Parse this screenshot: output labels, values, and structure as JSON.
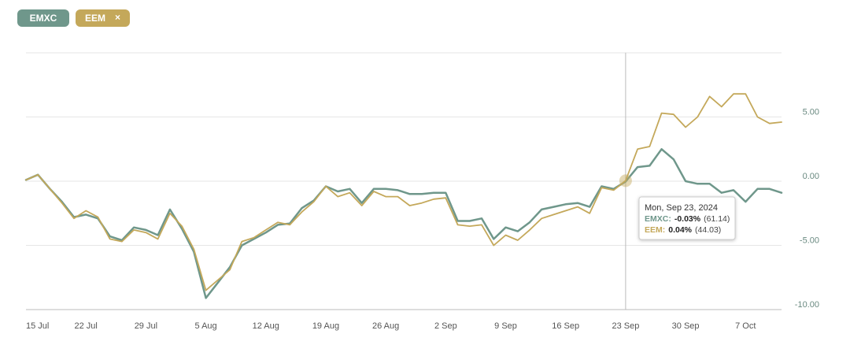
{
  "chart_data": {
    "type": "line",
    "legend": {
      "close_icon": "×"
    },
    "categories": [
      "15 Jul",
      null,
      null,
      null,
      null,
      "22 Jul",
      null,
      null,
      null,
      null,
      "29 Jul",
      null,
      null,
      null,
      null,
      "5 Aug",
      null,
      null,
      null,
      null,
      "12 Aug",
      null,
      null,
      null,
      null,
      "19 Aug",
      null,
      null,
      null,
      null,
      "26 Aug",
      null,
      null,
      null,
      null,
      "2 Sep",
      null,
      null,
      null,
      null,
      "9 Sep",
      null,
      null,
      null,
      null,
      "16 Sep",
      null,
      null,
      null,
      null,
      "23 Sep",
      null,
      null,
      null,
      null,
      "30 Sep",
      null,
      null,
      null,
      null,
      "7 Oct",
      null,
      null,
      null
    ],
    "series": [
      {
        "name": "EMXC",
        "color": "#6f978b",
        "values": [
          0.1,
          0.5,
          -0.6,
          -1.6,
          -2.8,
          -2.6,
          -2.9,
          -4.3,
          -4.6,
          -3.6,
          -3.8,
          -4.2,
          -2.2,
          -3.7,
          -5.5,
          -9.1,
          -7.9,
          -6.7,
          -5.0,
          -4.5,
          -4.0,
          -3.4,
          -3.3,
          -2.1,
          -1.5,
          -0.4,
          -0.8,
          -0.6,
          -1.7,
          -0.6,
          -0.6,
          -0.7,
          -1.0,
          -1.0,
          -0.9,
          -0.9,
          -3.1,
          -3.1,
          -2.9,
          -4.5,
          -3.6,
          -3.9,
          -3.2,
          -2.2,
          -2.0,
          -1.8,
          -1.7,
          -2.0,
          -0.4,
          -0.6,
          -0.03,
          1.1,
          1.2,
          2.5,
          1.7,
          0.0,
          -0.2,
          -0.2,
          -0.9,
          -0.7,
          -1.6,
          -0.6,
          -0.6,
          -0.9
        ]
      },
      {
        "name": "EEM",
        "color": "#c4a85a",
        "values": [
          0.1,
          0.5,
          -0.6,
          -1.7,
          -2.9,
          -2.3,
          -2.8,
          -4.5,
          -4.7,
          -3.8,
          -4.0,
          -4.5,
          -2.5,
          -3.5,
          -5.3,
          -8.5,
          -7.7,
          -6.9,
          -4.7,
          -4.4,
          -3.8,
          -3.2,
          -3.4,
          -2.4,
          -1.6,
          -0.4,
          -1.2,
          -0.9,
          -1.9,
          -0.8,
          -1.2,
          -1.2,
          -1.9,
          -1.7,
          -1.4,
          -1.3,
          -3.4,
          -3.5,
          -3.4,
          -5.0,
          -4.2,
          -4.6,
          -3.8,
          -2.9,
          -2.6,
          -2.3,
          -2.0,
          -2.5,
          -0.5,
          -0.7,
          0.04,
          2.5,
          2.7,
          5.3,
          5.2,
          4.2,
          5.0,
          6.6,
          5.8,
          6.8,
          6.8,
          5.0,
          4.5,
          4.6
        ]
      }
    ],
    "ylim": [
      -10,
      10
    ],
    "yticks": [
      {
        "value": 5,
        "label": "5.00"
      },
      {
        "value": 0,
        "label": "0.00"
      },
      {
        "value": -5,
        "label": "-5.00"
      },
      {
        "value": -10,
        "label": "-10.00"
      }
    ],
    "grid": true,
    "tooltip": {
      "title": "Mon, Sep 23, 2024",
      "rows": [
        {
          "label": "EMXC:",
          "value": "-0.03%",
          "price": "(61.14)"
        },
        {
          "label": "EEM:",
          "value": "0.04%",
          "price": "(44.03)"
        }
      ]
    }
  }
}
